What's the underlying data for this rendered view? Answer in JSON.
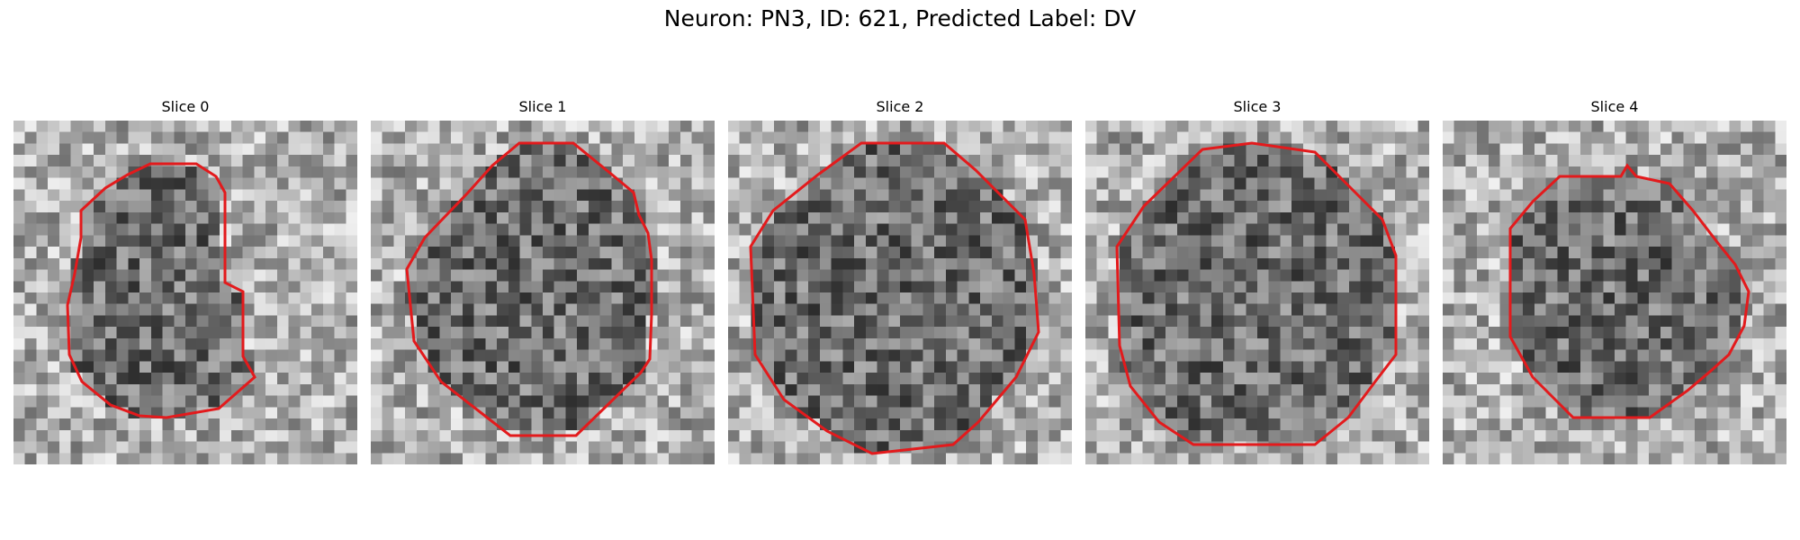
{
  "figure": {
    "suptitle": "Neuron: PN3, ID: 621, Predicted Label: DV"
  },
  "outline_color": "#e31a1c",
  "panels": [
    {
      "title": "Slice 0"
    },
    {
      "title": "Slice 1"
    },
    {
      "title": "Slice 2"
    },
    {
      "title": "Slice 3"
    },
    {
      "title": "Slice 4"
    }
  ]
}
